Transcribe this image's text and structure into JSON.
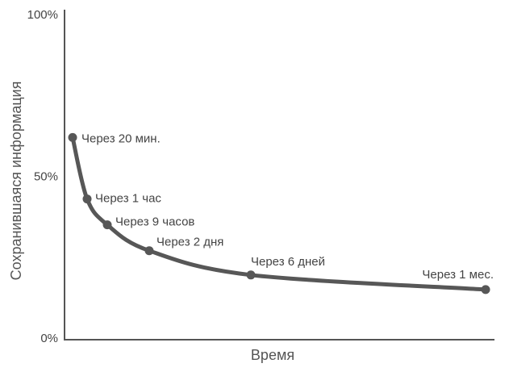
{
  "chart_data": {
    "type": "line",
    "title": "",
    "xlabel": "Время",
    "ylabel": "Сохранившаяся информация",
    "ylim": [
      0,
      100
    ],
    "yticks": [
      "0%",
      "50%",
      "100%"
    ],
    "yticks_values": [
      0,
      50,
      100
    ],
    "grid": false,
    "points": [
      {
        "label": "Через 20 мин.",
        "y": 62
      },
      {
        "label": "Через 1 час",
        "y": 43
      },
      {
        "label": "Через 9 часов",
        "y": 35
      },
      {
        "label": "Через 2 дня",
        "y": 27
      },
      {
        "label": "Через 6 дней",
        "y": 19.5
      },
      {
        "label": "Через 1 мес.",
        "y": 15
      }
    ]
  }
}
